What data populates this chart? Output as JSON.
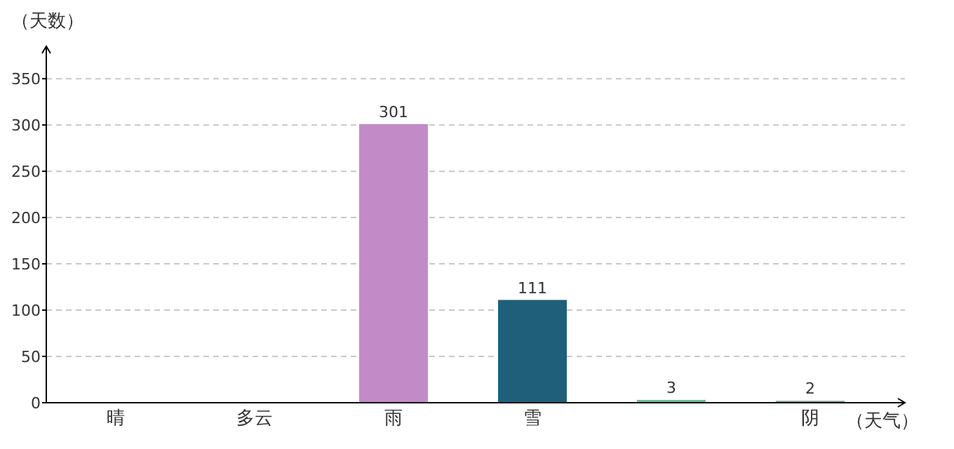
{
  "chart_data": {
    "type": "bar",
    "xlabel": "（天气）",
    "ylabel": "（天数）",
    "categories": [
      "晴",
      "多云",
      "雨",
      "雪",
      null,
      "阴"
    ],
    "values": [
      null,
      null,
      301,
      111,
      3,
      2
    ],
    "value_labels": [
      null,
      null,
      "301",
      "111",
      "3",
      "2"
    ],
    "colors": [
      null,
      null,
      "#c28bc8",
      "#1f5f7a",
      "#6cbc94",
      "#5ba8a0"
    ],
    "ylim": [
      0,
      385
    ],
    "yticks": [
      0,
      50,
      100,
      150,
      200,
      250,
      300,
      350
    ],
    "grid": "y"
  }
}
